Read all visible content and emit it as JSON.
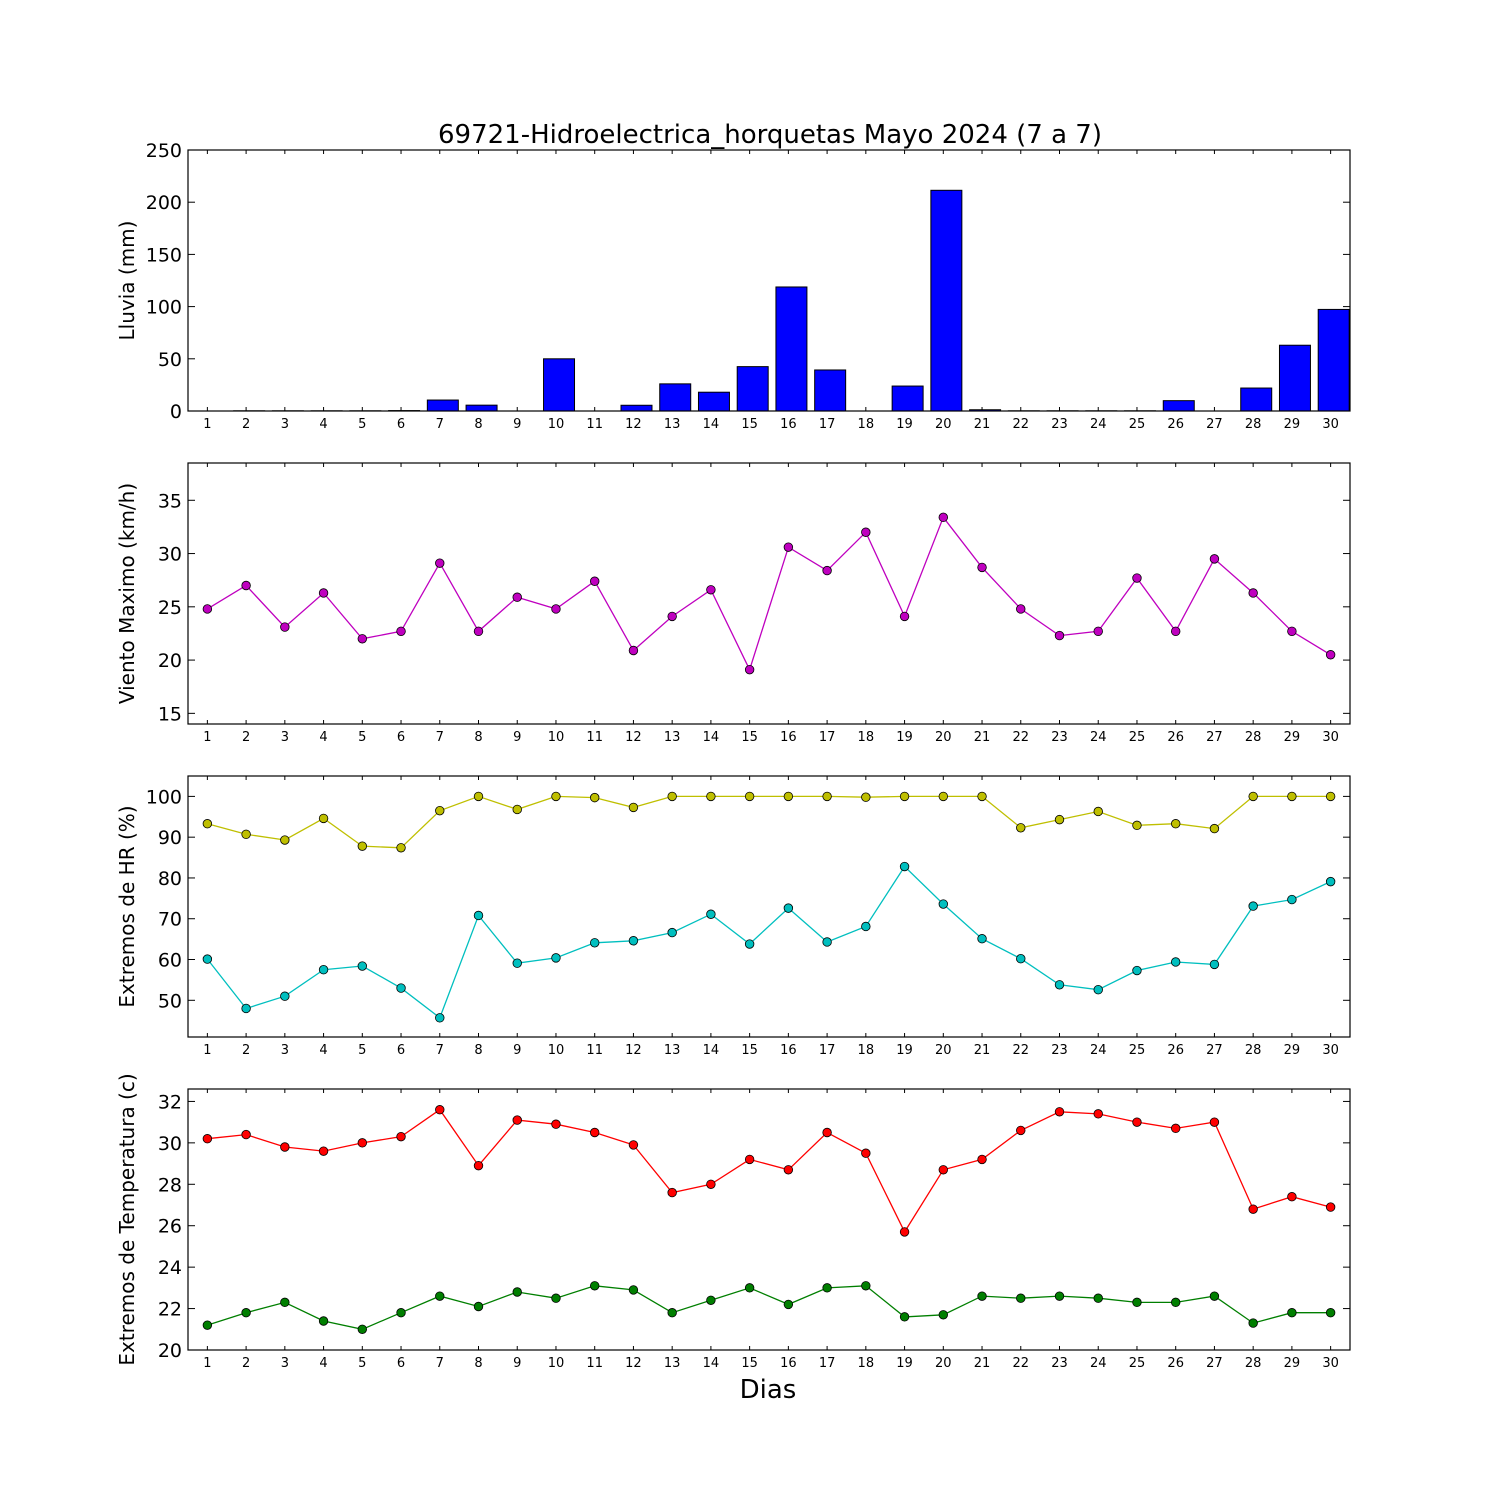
{
  "title": "69721-Hidroelectrica_horquetas Mayo 2024  (7 a 7)",
  "xlabel": "Dias",
  "chart_data": [
    {
      "type": "bar",
      "ylabel": "Lluvia (mm)",
      "ylim": [
        0,
        250
      ],
      "yticks": [
        0,
        50,
        100,
        150,
        200,
        250
      ],
      "x": [
        1,
        2,
        3,
        4,
        5,
        6,
        7,
        8,
        9,
        10,
        11,
        12,
        13,
        14,
        15,
        16,
        17,
        18,
        19,
        20,
        21,
        22,
        23,
        24,
        25,
        26,
        27,
        28,
        29,
        30
      ],
      "series": [
        {
          "color": "#0000ff",
          "values": [
            0,
            0.2,
            0.2,
            0.2,
            0.2,
            0.4,
            10.5,
            5.6,
            0,
            50.0,
            0,
            5.5,
            26.0,
            18.0,
            42.5,
            118.8,
            39.3,
            0,
            23.9,
            211.4,
            1.2,
            0.2,
            0.2,
            0.2,
            0.2,
            9.9,
            0,
            22.0,
            63.0,
            97.3
          ]
        }
      ]
    },
    {
      "type": "line",
      "ylabel": "Viento Maximo (km/h)",
      "ylim": [
        14,
        38.5
      ],
      "yticks": [
        15,
        20,
        25,
        30,
        35
      ],
      "x": [
        1,
        2,
        3,
        4,
        5,
        6,
        7,
        8,
        9,
        10,
        11,
        12,
        13,
        14,
        15,
        16,
        17,
        18,
        19,
        20,
        21,
        22,
        23,
        24,
        25,
        26,
        27,
        28,
        29,
        30
      ],
      "series": [
        {
          "color": "#bf00bf",
          "values": [
            24.8,
            27.0,
            23.1,
            26.3,
            22.0,
            22.7,
            29.1,
            22.7,
            25.9,
            24.8,
            27.4,
            20.9,
            24.1,
            26.6,
            19.1,
            30.6,
            28.4,
            32.0,
            24.1,
            33.4,
            28.7,
            24.8,
            22.3,
            22.7,
            27.7,
            22.7,
            29.5,
            26.3,
            22.7,
            20.5
          ]
        }
      ]
    },
    {
      "type": "line",
      "ylabel": "Extremos de HR (%)",
      "ylim": [
        41,
        105
      ],
      "yticks": [
        50,
        60,
        70,
        80,
        90,
        100
      ],
      "x": [
        1,
        2,
        3,
        4,
        5,
        6,
        7,
        8,
        9,
        10,
        11,
        12,
        13,
        14,
        15,
        16,
        17,
        18,
        19,
        20,
        21,
        22,
        23,
        24,
        25,
        26,
        27,
        28,
        29,
        30
      ],
      "series": [
        {
          "color": "#bfbf00",
          "values": [
            93.3,
            90.7,
            89.3,
            94.6,
            87.8,
            87.4,
            96.5,
            100,
            96.8,
            100,
            99.7,
            97.3,
            100,
            100,
            100,
            100,
            100,
            99.8,
            100,
            100,
            100,
            92.3,
            94.3,
            96.3,
            92.9,
            93.3,
            92.1,
            100,
            100,
            100
          ]
        },
        {
          "color": "#00bfbf",
          "values": [
            60.1,
            48.0,
            51.0,
            57.5,
            58.4,
            53.0,
            45.7,
            70.8,
            59.1,
            60.4,
            64.1,
            64.6,
            66.6,
            71.1,
            63.8,
            72.6,
            64.3,
            68.1,
            82.8,
            73.6,
            65.1,
            60.2,
            53.8,
            52.6,
            57.3,
            59.4,
            58.8,
            73.1,
            74.7,
            79.1
          ]
        }
      ]
    },
    {
      "type": "line",
      "ylabel": "Extremos de Temperatura (c)",
      "ylim": [
        20,
        32.6
      ],
      "yticks": [
        20,
        22,
        24,
        26,
        28,
        30,
        32
      ],
      "x": [
        1,
        2,
        3,
        4,
        5,
        6,
        7,
        8,
        9,
        10,
        11,
        12,
        13,
        14,
        15,
        16,
        17,
        18,
        19,
        20,
        21,
        22,
        23,
        24,
        25,
        26,
        27,
        28,
        29,
        30
      ],
      "series": [
        {
          "color": "#ff0000",
          "values": [
            30.2,
            30.4,
            29.8,
            29.6,
            30.0,
            30.3,
            31.6,
            28.9,
            31.1,
            30.9,
            30.5,
            29.9,
            27.6,
            28.0,
            29.2,
            28.7,
            30.5,
            29.5,
            25.7,
            28.7,
            29.2,
            30.6,
            31.5,
            31.4,
            31.0,
            30.7,
            31.0,
            26.8,
            27.4,
            26.9
          ]
        },
        {
          "color": "#007f00",
          "values": [
            21.2,
            21.8,
            22.3,
            21.4,
            21.0,
            21.8,
            22.6,
            22.1,
            22.8,
            22.5,
            23.1,
            22.9,
            21.8,
            22.4,
            23.0,
            22.2,
            23.0,
            23.1,
            21.6,
            21.7,
            22.6,
            22.5,
            22.6,
            22.5,
            22.3,
            22.3,
            22.6,
            21.3,
            21.8,
            21.8
          ]
        }
      ]
    }
  ]
}
